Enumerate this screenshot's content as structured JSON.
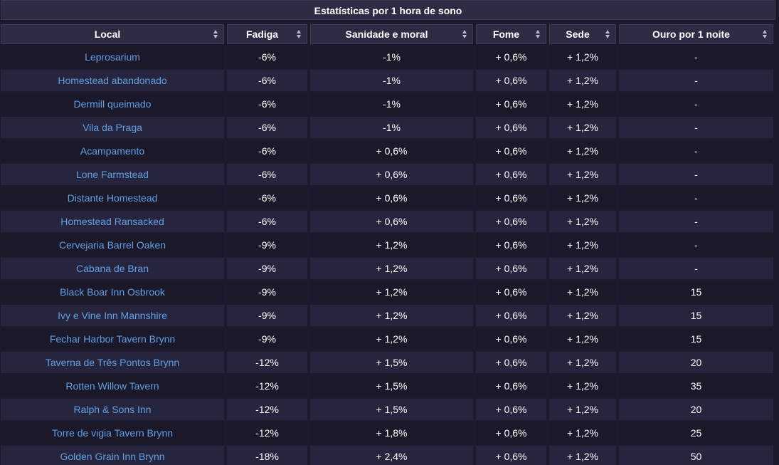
{
  "caption": "Estatísticas por 1 hora de sono",
  "columns": [
    "Local",
    "Fadiga",
    "Sanidade e moral",
    "Fome",
    "Sede",
    "Ouro por 1 noite"
  ],
  "rows": [
    [
      "Leprosarium",
      "-6%",
      "-1%",
      "+ 0,6%",
      "+ 1,2%",
      "-"
    ],
    [
      "Homestead abandonado",
      "-6%",
      "-1%",
      "+ 0,6%",
      "+ 1,2%",
      "-"
    ],
    [
      "Dermill queimado",
      "-6%",
      "-1%",
      "+ 0,6%",
      "+ 1,2%",
      "-"
    ],
    [
      "Vila da Praga",
      "-6%",
      "-1%",
      "+ 0,6%",
      "+ 1,2%",
      "-"
    ],
    [
      "Acampamento",
      "-6%",
      "+ 0,6%",
      "+ 0,6%",
      "+ 1,2%",
      "-"
    ],
    [
      "Lone Farmstead",
      "-6%",
      "+ 0,6%",
      "+ 0,6%",
      "+ 1,2%",
      "-"
    ],
    [
      "Distante Homestead",
      "-6%",
      "+ 0,6%",
      "+ 0,6%",
      "+ 1,2%",
      "-"
    ],
    [
      "Homestead Ransacked",
      "-6%",
      "+ 0,6%",
      "+ 0,6%",
      "+ 1,2%",
      "-"
    ],
    [
      "Cervejaria Barrel Oaken",
      "-9%",
      "+ 1,2%",
      "+ 0,6%",
      "+ 1,2%",
      "-"
    ],
    [
      "Cabana de Bran",
      "-9%",
      "+ 1,2%",
      "+ 0,6%",
      "+ 1,2%",
      "-"
    ],
    [
      "Black Boar Inn Osbrook",
      "-9%",
      "+ 1,2%",
      "+ 0,6%",
      "+ 1,2%",
      "15"
    ],
    [
      "Ivy e Vine Inn Mannshire",
      "-9%",
      "+ 1,2%",
      "+ 0,6%",
      "+ 1,2%",
      "15"
    ],
    [
      "Fechar Harbor Tavern Brynn",
      "-9%",
      "+ 1,2%",
      "+ 0,6%",
      "+ 1,2%",
      "15"
    ],
    [
      "Taverna de Três Pontos Brynn",
      "-12%",
      "+ 1,5%",
      "+ 0,6%",
      "+ 1,2%",
      "20"
    ],
    [
      "Rotten Willow Tavern",
      "-12%",
      "+ 1,5%",
      "+ 0,6%",
      "+ 1,2%",
      "35"
    ],
    [
      "Ralph & Sons Inn",
      "-12%",
      "+ 1,5%",
      "+ 0,6%",
      "+ 1,2%",
      "20"
    ],
    [
      "Torre de vigia Tavern Brynn",
      "-12%",
      "+ 1,8%",
      "+ 0,6%",
      "+ 1,2%",
      "25"
    ],
    [
      "Golden Grain Inn Brynn",
      "-18%",
      "+ 2,4%",
      "+ 0,6%",
      "+ 1,2%",
      "50"
    ]
  ]
}
